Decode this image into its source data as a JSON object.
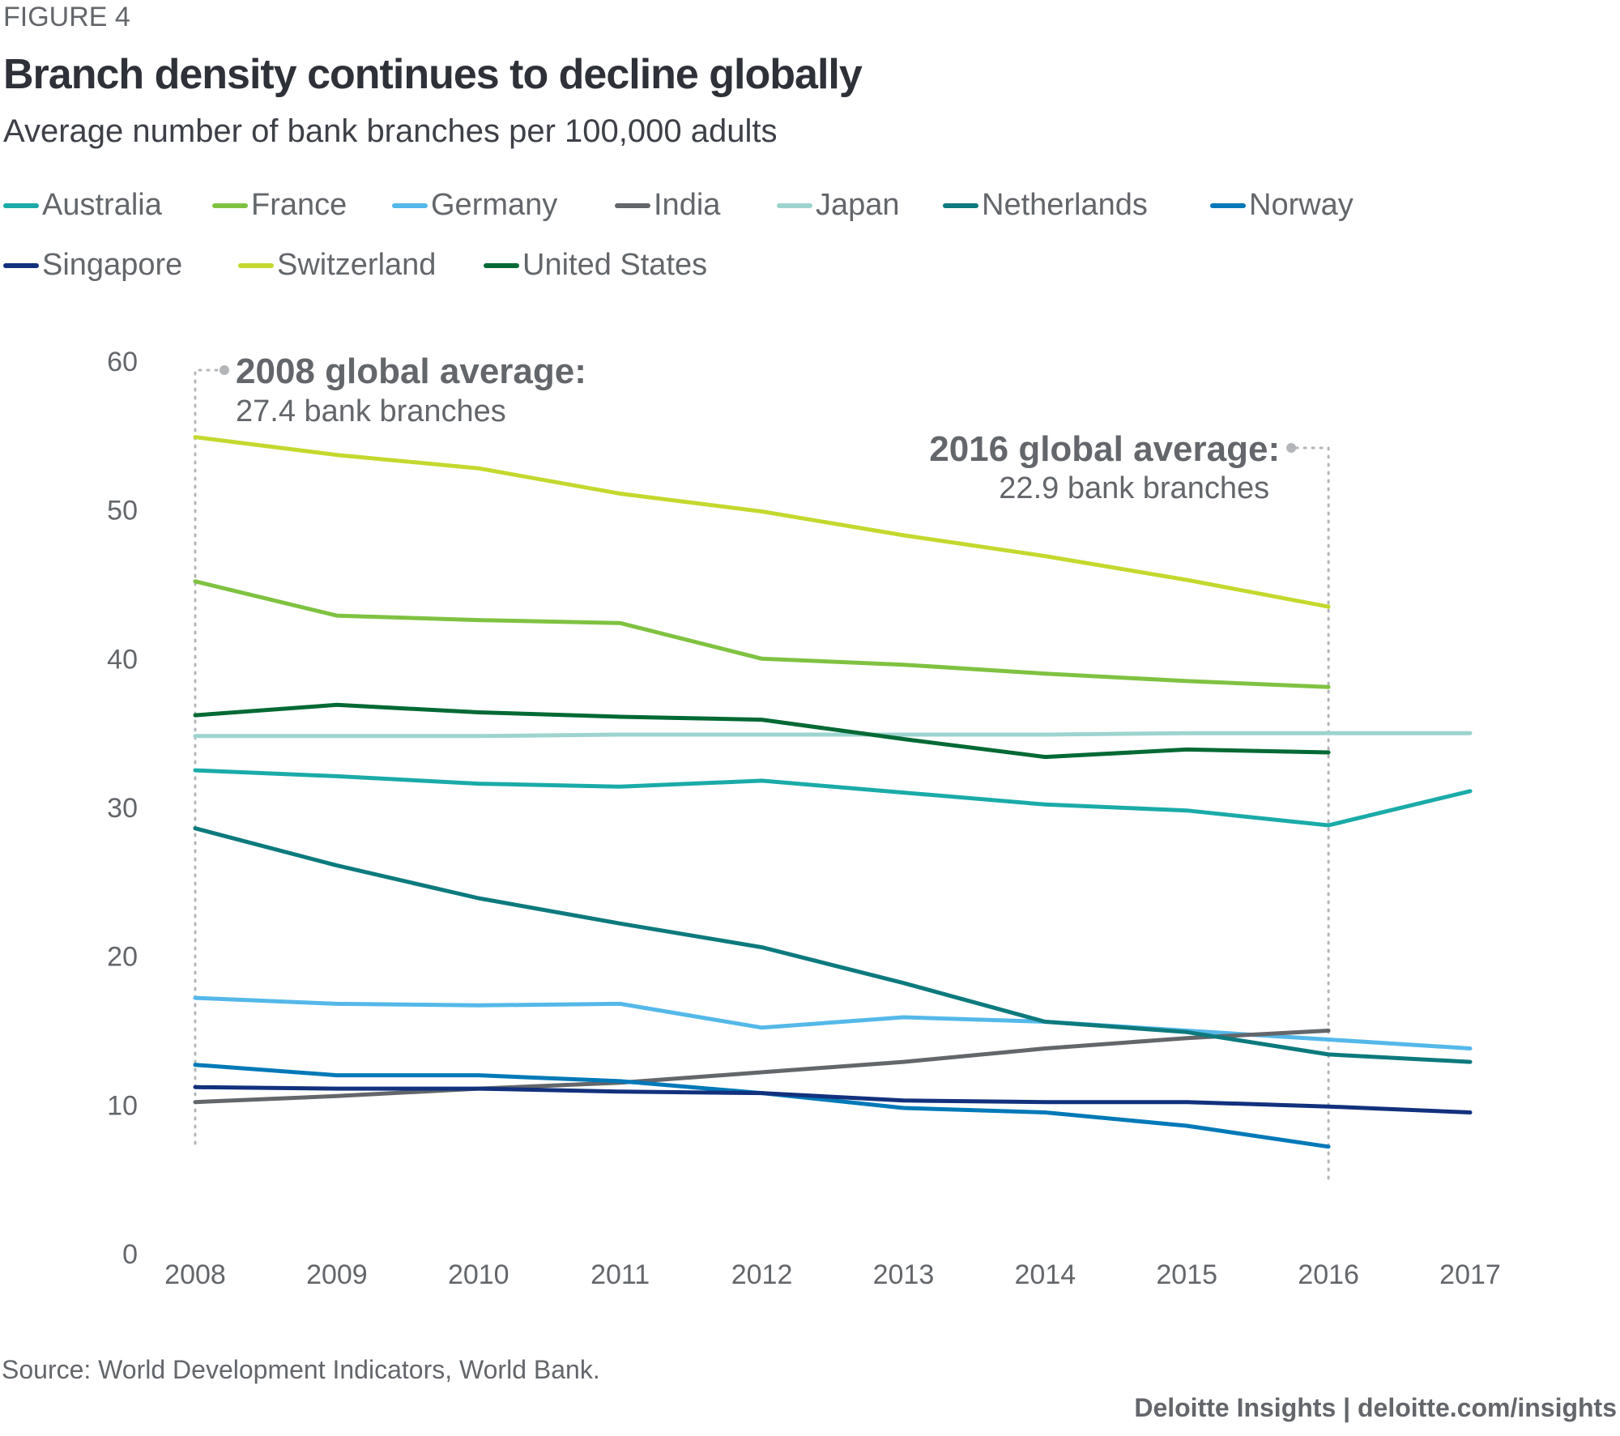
{
  "header": {
    "figure_label": "FIGURE 4",
    "title": "Branch density continues to decline globally",
    "subtitle": "Average number of bank branches per 100,000 adults"
  },
  "annotations": [
    {
      "title": "2008 global average:",
      "text": "27.4 bank branches",
      "year": 2008,
      "value": 27.4
    },
    {
      "title": "2016 global average:",
      "text": "22.9 bank branches",
      "year": 2016,
      "value": 22.9
    }
  ],
  "footer": {
    "source": "Source: World Development Indicators, World Bank.",
    "credit": "Deloitte Insights | deloitte.com/insights"
  },
  "chart_data": {
    "type": "line",
    "title": "Branch density continues to decline globally",
    "subtitle": "Average number of bank branches per 100,000 adults",
    "xlabel": "",
    "ylabel": "",
    "x": [
      2008,
      2009,
      2010,
      2011,
      2012,
      2013,
      2014,
      2015,
      2016,
      2017
    ],
    "x_tick_labels": [
      "2008",
      "2009",
      "2010",
      "2011",
      "2012",
      "2013",
      "2014",
      "2015",
      "2016",
      "2017"
    ],
    "y_ticks": [
      0,
      10,
      20,
      30,
      40,
      50,
      60
    ],
    "y_tick_labels": [
      "0",
      "10",
      "20",
      "30",
      "40",
      "50",
      "60"
    ],
    "ylim": [
      0,
      60
    ],
    "xlim": [
      2008,
      2017
    ],
    "grid": false,
    "legend_position": "top",
    "series": [
      {
        "name": "Australia",
        "color": "#1aaba8",
        "values": [
          32.5,
          32.1,
          31.6,
          31.4,
          31.8,
          31.0,
          30.2,
          29.8,
          28.8,
          31.1
        ]
      },
      {
        "name": "France",
        "color": "#7fc241",
        "values": [
          45.2,
          42.9,
          42.6,
          42.4,
          40.0,
          39.6,
          39.0,
          38.5,
          38.1,
          null
        ]
      },
      {
        "name": "Germany",
        "color": "#54b8e9",
        "values": [
          17.2,
          16.8,
          16.7,
          16.8,
          15.2,
          15.9,
          15.6,
          15.0,
          14.4,
          13.8
        ]
      },
      {
        "name": "India",
        "color": "#63666a",
        "values": [
          10.2,
          10.6,
          11.1,
          11.5,
          12.2,
          12.9,
          13.8,
          14.5,
          15.0,
          null
        ]
      },
      {
        "name": "Japan",
        "color": "#9dd4cf",
        "values": [
          34.8,
          34.8,
          34.8,
          34.9,
          34.9,
          34.9,
          34.9,
          35.0,
          35.0,
          35.0
        ]
      },
      {
        "name": "Netherlands",
        "color": "#0d7a7d",
        "values": [
          28.6,
          26.1,
          23.9,
          22.2,
          20.6,
          18.2,
          15.6,
          14.9,
          13.4,
          12.9
        ]
      },
      {
        "name": "Norway",
        "color": "#0079b8",
        "values": [
          12.7,
          12.0,
          12.0,
          11.6,
          10.8,
          9.8,
          9.5,
          8.6,
          7.2,
          null
        ]
      },
      {
        "name": "Singapore",
        "color": "#12317d",
        "values": [
          11.2,
          11.1,
          11.1,
          10.9,
          10.8,
          10.3,
          10.2,
          10.2,
          9.9,
          9.5
        ]
      },
      {
        "name": "Switzerland",
        "color": "#c4d82e",
        "values": [
          54.9,
          53.7,
          52.8,
          51.1,
          49.9,
          48.3,
          46.9,
          45.3,
          43.5,
          null
        ]
      },
      {
        "name": "United States",
        "color": "#006934",
        "values": [
          36.2,
          36.9,
          36.4,
          36.1,
          35.9,
          34.6,
          33.4,
          33.9,
          33.7,
          null
        ]
      }
    ]
  }
}
